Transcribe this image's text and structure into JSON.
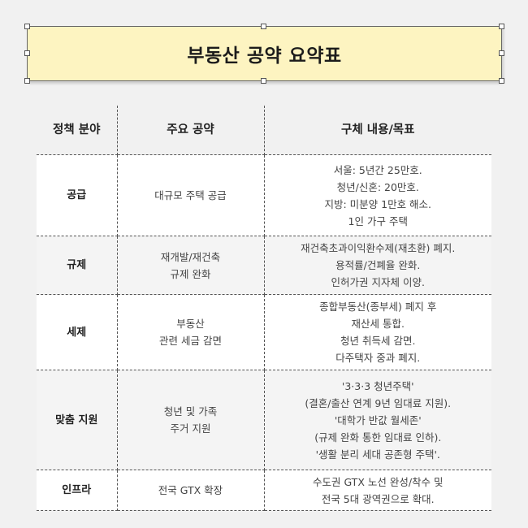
{
  "title": "부동산 공약 요약표",
  "headers": [
    "정책 분야",
    "주요 공약",
    "구체 내용/목표"
  ],
  "rows": [
    {
      "category": "공급",
      "pledge": [
        "대규모 주택 공급"
      ],
      "details": [
        "서울: 5년간 25만호.",
        "청년/신혼: 20만호.",
        "지방: 미분양 1만호 해소.",
        "1인 가구 주택"
      ]
    },
    {
      "category": "규제",
      "pledge": [
        "재개발/재건축",
        "규제 완화"
      ],
      "details": [
        "재건축초과이익환수제(재초환) 폐지.",
        "용적률/건폐율 완화.",
        "인허가권 지자체 이양."
      ]
    },
    {
      "category": "세제",
      "pledge": [
        "부동산",
        "관련 세금 감면"
      ],
      "details": [
        "종합부동산(종부세) 폐지 후",
        "재산세 통합.",
        "청년 취득세 감면.",
        "다주택자 중과 폐지."
      ]
    },
    {
      "category": "맞춤 지원",
      "pledge": [
        "청년 및 가족",
        "주거 지원"
      ],
      "details": [
        "'3·3·3 청년주택'",
        "(결혼/출산 연계 9년 임대료 지원).",
        "'대학가 반값 월세존'",
        "(규제 완화 통한 임대료 인하).",
        "'생활 분리 세대 공존형 주택'."
      ]
    },
    {
      "category": "인프라",
      "pledge": [
        "전국 GTX 확장"
      ],
      "details": [
        "수도권 GTX 노선 완성/착수 및",
        "전국 5대 광역권으로 확대."
      ]
    }
  ],
  "colors": {
    "title_fill": "#fdf4c1",
    "background": "#f1f1f1",
    "alt_row": "#f4f4f4"
  }
}
